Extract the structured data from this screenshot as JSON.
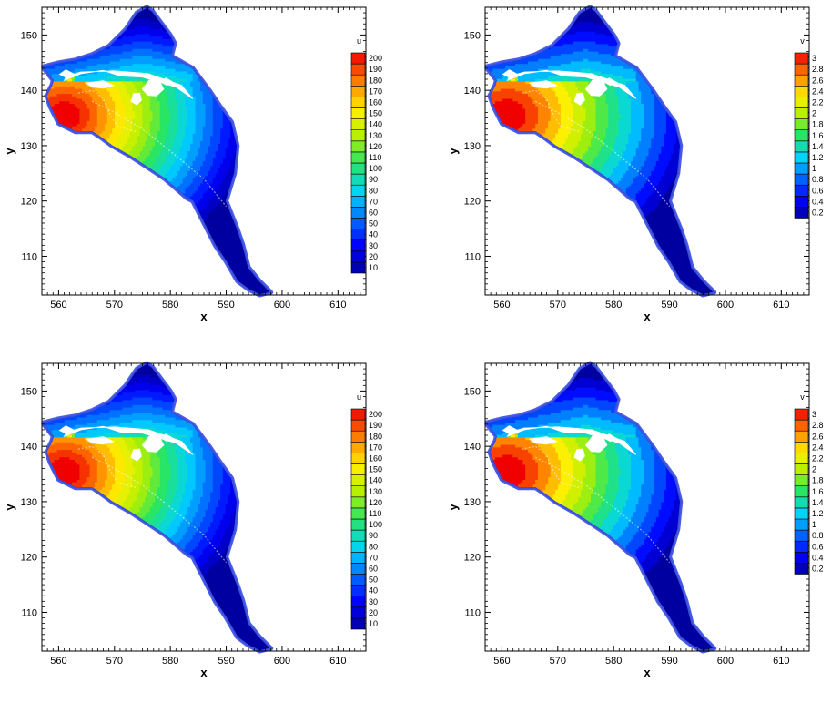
{
  "chart_data": [
    {
      "type": "contour",
      "xlabel": "x",
      "ylabel": "y",
      "xlim": [
        557,
        615
      ],
      "ylim": [
        103,
        155
      ],
      "xticks": [
        "560",
        "570",
        "580",
        "590",
        "600",
        "610"
      ],
      "yticks": [
        "110",
        "120",
        "130",
        "140",
        "150"
      ],
      "legend": {
        "title": "u",
        "placement": "right",
        "levels": [
          "10",
          "20",
          "30",
          "40",
          "50",
          "60",
          "70",
          "80",
          "90",
          "100",
          "110",
          "120",
          "130",
          "140",
          "150",
          "160",
          "170",
          "180",
          "190",
          "200"
        ]
      },
      "field_range": [
        0,
        210
      ]
    },
    {
      "type": "contour",
      "xlabel": "x",
      "ylabel": "y",
      "xlim": [
        557,
        615
      ],
      "ylim": [
        103,
        155
      ],
      "xticks": [
        "560",
        "570",
        "580",
        "590",
        "600",
        "610"
      ],
      "yticks": [
        "110",
        "120",
        "130",
        "140",
        "150"
      ],
      "legend": {
        "title": "v",
        "placement": "right",
        "levels": [
          "0.2",
          "0.4",
          "0.6",
          "0.8",
          "1",
          "1.2",
          "1.4",
          "1.6",
          "1.8",
          "2",
          "2.2",
          "2.4",
          "2.6",
          "2.8",
          "3"
        ]
      },
      "field_range": [
        0.1,
        3.1
      ]
    },
    {
      "type": "contour",
      "xlabel": "x",
      "ylabel": "y",
      "xlim": [
        557,
        615
      ],
      "ylim": [
        103,
        155
      ],
      "xticks": [
        "560",
        "570",
        "580",
        "590",
        "600",
        "610"
      ],
      "yticks": [
        "110",
        "120",
        "130",
        "140",
        "150"
      ],
      "legend": {
        "title": "u",
        "placement": "right",
        "levels": [
          "10",
          "20",
          "30",
          "40",
          "50",
          "60",
          "70",
          "80",
          "90",
          "100",
          "110",
          "120",
          "130",
          "140",
          "150",
          "160",
          "170",
          "180",
          "190",
          "200"
        ]
      },
      "field_range": [
        0,
        210
      ]
    },
    {
      "type": "contour",
      "xlabel": "x",
      "ylabel": "y",
      "xlim": [
        557,
        615
      ],
      "ylim": [
        103,
        155
      ],
      "xticks": [
        "560",
        "570",
        "580",
        "590",
        "600",
        "610"
      ],
      "yticks": [
        "110",
        "120",
        "130",
        "140",
        "150"
      ],
      "legend": {
        "title": "v",
        "placement": "right",
        "levels": [
          "0.2",
          "0.4",
          "0.6",
          "0.8",
          "1",
          "1.2",
          "1.4",
          "1.6",
          "1.8",
          "2",
          "2.2",
          "2.4",
          "2.6",
          "2.8",
          "3"
        ]
      },
      "field_range": [
        0.1,
        3.1
      ]
    }
  ]
}
